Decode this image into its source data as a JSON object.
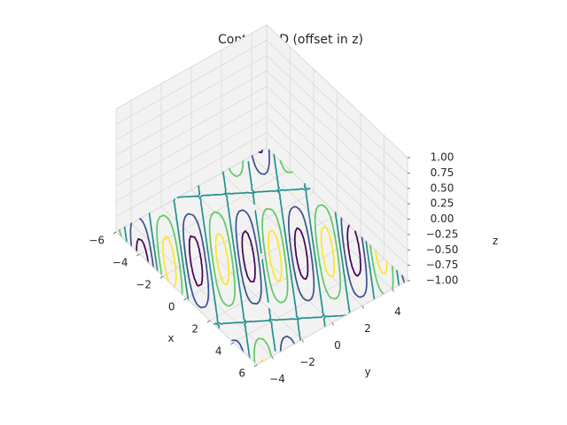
{
  "chart_data": {
    "type": "contour",
    "projection": "3d",
    "title": "Contour 3D (offset in z)",
    "xlabel": "x",
    "ylabel": "y",
    "zlabel": "z",
    "xlim": [
      -6,
      6
    ],
    "ylim": [
      -5,
      5
    ],
    "zlim": [
      -1,
      1
    ],
    "x_ticks": [
      "−6",
      "−4",
      "−2",
      "0",
      "2",
      "4",
      "6"
    ],
    "y_ticks": [
      "−4",
      "−2",
      "0",
      "2",
      "4"
    ],
    "z_ticks": [
      "−1.00",
      "−0.75",
      "−0.50",
      "−0.25",
      "0.00",
      "0.25",
      "0.50",
      "0.75",
      "1.00"
    ],
    "z_offset": -1,
    "colormap": "viridis",
    "grid": true,
    "pane_color": "#f2f2f2",
    "grid_color": "#d9d9d9"
  }
}
